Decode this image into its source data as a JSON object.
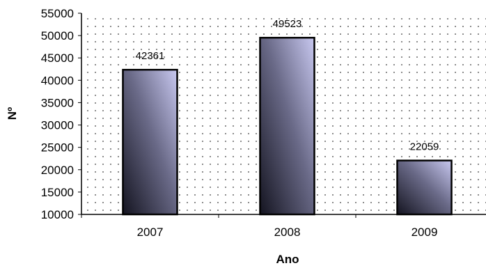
{
  "chart_data": {
    "type": "bar",
    "title": "",
    "xlabel": "Ano",
    "ylabel": "Nº",
    "categories": [
      "2007",
      "2008",
      "2009"
    ],
    "values": [
      42361,
      49523,
      22059
    ],
    "data_labels": [
      "42361",
      "49523",
      "22059"
    ],
    "ylim": [
      10000,
      55000
    ],
    "yticks": [
      10000,
      15000,
      20000,
      25000,
      30000,
      35000,
      40000,
      45000,
      50000,
      55000
    ],
    "ytick_labels": [
      "10000",
      "15000",
      "20000",
      "25000",
      "30000",
      "35000",
      "40000",
      "45000",
      "50000",
      "55000"
    ],
    "grid": false,
    "legend": "none",
    "plot_background": "dotted",
    "colors": {
      "bar_light": "#c8c8f0",
      "bar_dark": "#141420",
      "dots": "#8c8c8c",
      "axis": "#000000"
    }
  }
}
